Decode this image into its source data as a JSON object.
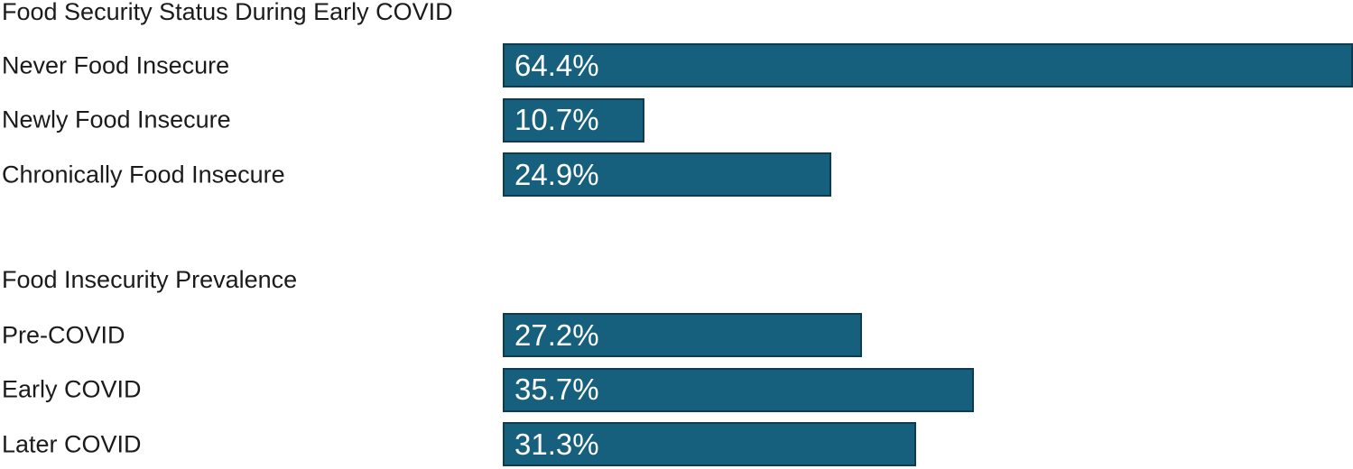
{
  "page": {
    "background": "#ffffff",
    "text_color": "#1b1b1b"
  },
  "chart_data": [
    {
      "type": "bar",
      "orientation": "horizontal",
      "title": "Food Security Status During Early COVID",
      "categories": [
        "Never Food Insecure",
        "Newly Food Insecure",
        "Chronically Food Insecure"
      ],
      "values": [
        64.4,
        10.7,
        24.9
      ],
      "value_labels": [
        "64.4%",
        "10.7%",
        "24.9%"
      ],
      "xlim": [
        0,
        64.4
      ],
      "grid": false,
      "legend": "none",
      "bar_color": "#16607E",
      "bar_border_color": "#0D3B50",
      "value_label_color": "#ffffff",
      "value_label_position": "inside-left"
    },
    {
      "type": "bar",
      "orientation": "horizontal",
      "title": "Food Insecurity Prevalence",
      "categories": [
        "Pre-COVID",
        "Early COVID",
        "Later COVID"
      ],
      "values": [
        27.2,
        35.7,
        31.3
      ],
      "value_labels": [
        "27.2%",
        "35.7%",
        "31.3%"
      ],
      "xlim": [
        0,
        64.4
      ],
      "grid": false,
      "legend": "none",
      "bar_color": "#16607E",
      "bar_border_color": "#0D3B50",
      "value_label_color": "#ffffff",
      "value_label_position": "inside-left"
    }
  ]
}
